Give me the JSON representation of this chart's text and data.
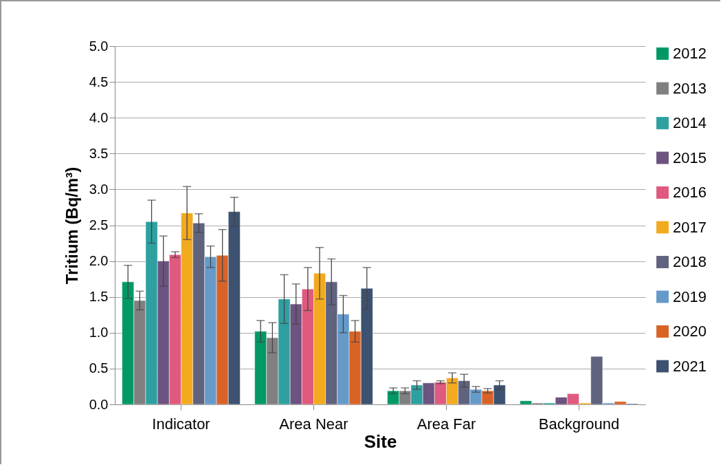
{
  "chart_data": {
    "type": "bar",
    "xlabel": "Site",
    "ylabel": "Tritium (Bq/m³)",
    "categories": [
      "Indicator",
      "Area Near",
      "Area Far",
      "Background"
    ],
    "series": [
      {
        "name": "2012",
        "color": "#009966",
        "values": [
          1.71,
          1.02,
          0.19,
          0.05
        ],
        "errors": [
          0.23,
          0.15,
          0.04,
          null
        ]
      },
      {
        "name": "2013",
        "color": "#808080",
        "values": [
          1.45,
          0.93,
          0.19,
          0.02
        ],
        "errors": [
          0.13,
          0.21,
          0.04,
          null
        ]
      },
      {
        "name": "2014",
        "color": "#2ea0a0",
        "values": [
          2.55,
          1.47,
          0.27,
          0.02
        ],
        "errors": [
          0.3,
          0.34,
          0.06,
          null
        ]
      },
      {
        "name": "2015",
        "color": "#6d537f",
        "values": [
          2.0,
          1.4,
          0.3,
          0.1
        ],
        "errors": [
          0.35,
          0.28,
          null,
          null
        ]
      },
      {
        "name": "2016",
        "color": "#df5a7e",
        "values": [
          2.09,
          1.61,
          0.31,
          0.15
        ],
        "errors": [
          0.04,
          0.3,
          0.02,
          null
        ]
      },
      {
        "name": "2017",
        "color": "#f2aa1e",
        "values": [
          2.67,
          1.83,
          0.37,
          0.02
        ],
        "errors": [
          0.37,
          0.36,
          0.07,
          null
        ]
      },
      {
        "name": "2018",
        "color": "#5f637e",
        "values": [
          2.53,
          1.71,
          0.33,
          0.67
        ],
        "errors": [
          0.13,
          0.32,
          0.09,
          null
        ]
      },
      {
        "name": "2019",
        "color": "#659ac9",
        "values": [
          2.06,
          1.26,
          0.21,
          0.02
        ],
        "errors": [
          0.15,
          0.26,
          0.04,
          null
        ]
      },
      {
        "name": "2020",
        "color": "#d96326",
        "values": [
          2.08,
          1.02,
          0.19,
          0.04
        ],
        "errors": [
          0.36,
          0.15,
          0.03,
          null
        ]
      },
      {
        "name": "2021",
        "color": "#3d5170",
        "values": [
          2.69,
          1.62,
          0.27,
          0.01
        ],
        "errors": [
          0.2,
          0.29,
          0.06,
          null
        ]
      }
    ],
    "ylim": [
      0,
      5
    ],
    "yticks": [
      {
        "value": 0,
        "label": "0.0"
      },
      {
        "value": 0.5,
        "label": "0.5"
      },
      {
        "value": 1,
        "label": "1.0"
      },
      {
        "value": 1.5,
        "label": "1.5"
      },
      {
        "value": 2,
        "label": "2.0"
      },
      {
        "value": 2.5,
        "label": "2.5"
      },
      {
        "value": 3,
        "label": "3.0"
      },
      {
        "value": 3.5,
        "label": "3.5"
      },
      {
        "value": 4,
        "label": "4.0"
      },
      {
        "value": 4.5,
        "label": "4.5"
      },
      {
        "value": 5,
        "label": "5.0"
      }
    ],
    "grid": "y",
    "legend": "right"
  }
}
